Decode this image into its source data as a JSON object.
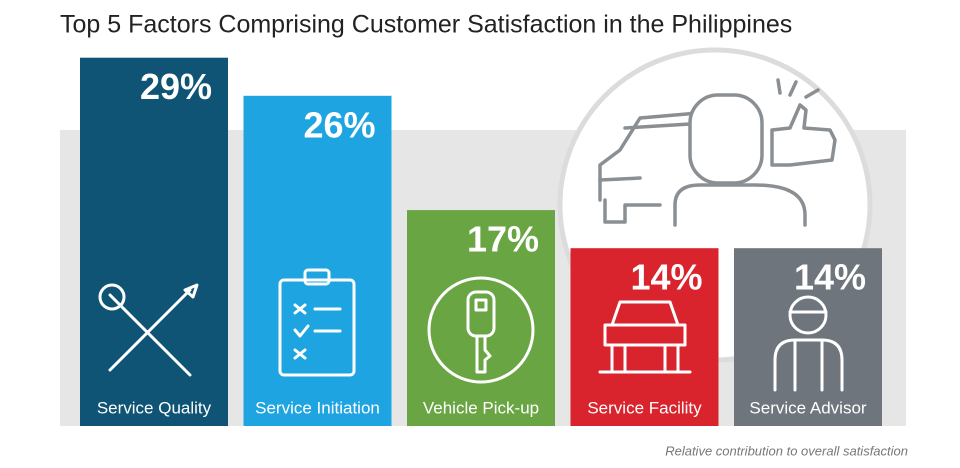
{
  "chart_data": {
    "type": "bar",
    "title": "Top 5 Factors Comprising Customer Satisfaction in the Philippines",
    "categories": [
      "Service Quality",
      "Service Initiation",
      "Vehicle Pick-up",
      "Service Facility",
      "Service Advisor"
    ],
    "values": [
      29,
      26,
      17,
      14,
      14
    ],
    "value_labels": [
      "29%",
      "26%",
      "17%",
      "14%",
      "14%"
    ],
    "colors": [
      "#0f5474",
      "#1ea4e1",
      "#6aa544",
      "#d9232d",
      "#6e757c"
    ],
    "note": "Relative contribution to overall satisfaction"
  }
}
